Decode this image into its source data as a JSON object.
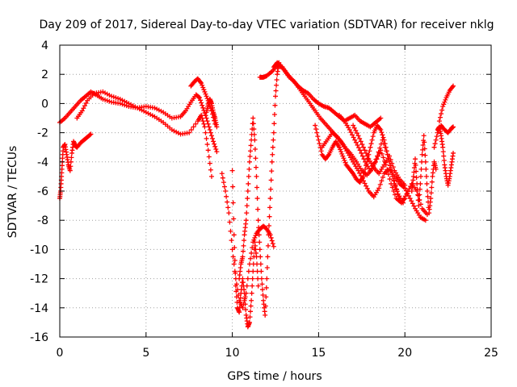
{
  "chart_data": {
    "type": "scatter",
    "title": "Day 209 of 2017, Sidereal Day-to-day VTEC variation (SDTVAR) for receiver nklg",
    "xlabel": "GPS time / hours",
    "ylabel": "SDTVAR / TECUs",
    "xlim": [
      0,
      25
    ],
    "ylim": [
      -16,
      4
    ],
    "xticks": [
      0,
      5,
      10,
      15,
      20,
      25
    ],
    "yticks": [
      -16,
      -14,
      -12,
      -10,
      -8,
      -6,
      -4,
      -2,
      0,
      2,
      4
    ],
    "grid": true,
    "marker": "+",
    "color": "#ff0000",
    "series": [
      {
        "x": [
          0.0,
          0.3,
          0.6,
          0.9,
          1.2,
          1.5,
          1.8,
          2.1,
          2.5,
          3.0,
          3.5,
          4.0,
          4.5,
          5.0,
          5.5,
          6.0,
          6.5,
          7.0,
          7.3,
          7.6,
          7.9,
          8.1,
          8.3,
          8.5,
          8.7,
          8.9,
          9.1
        ],
        "values": [
          -1.3,
          -1.0,
          -0.6,
          -0.2,
          0.2,
          0.5,
          0.8,
          0.6,
          0.3,
          0.1,
          0.0,
          -0.2,
          -0.3,
          -0.2,
          -0.3,
          -0.6,
          -1.0,
          -0.9,
          -0.5,
          0.1,
          0.6,
          0.4,
          -0.3,
          -1.0,
          -1.8,
          -2.6,
          -3.3
        ]
      },
      {
        "x": [
          0.0,
          0.05,
          0.1,
          0.15,
          0.2,
          0.3,
          0.4,
          0.5,
          0.6,
          0.7,
          0.8,
          0.9,
          1.0,
          1.2,
          1.4,
          1.6,
          1.8
        ],
        "values": [
          -6.5,
          -6.0,
          -5.0,
          -4.0,
          -3.0,
          -2.8,
          -3.5,
          -4.2,
          -4.6,
          -3.4,
          -2.6,
          -2.9,
          -3.0,
          -2.7,
          -2.5,
          -2.3,
          -2.1
        ]
      },
      {
        "x": [
          1.0,
          1.3,
          1.6,
          2.0,
          2.5,
          3.0,
          3.5,
          4.0,
          4.5,
          5.0,
          5.5,
          6.0,
          6.5,
          7.0,
          7.5,
          8.0,
          8.2,
          8.4,
          8.6,
          8.8
        ],
        "values": [
          -1.0,
          -0.5,
          0.2,
          0.7,
          0.8,
          0.5,
          0.3,
          0.0,
          -0.3,
          -0.6,
          -0.9,
          -1.3,
          -1.8,
          -2.1,
          -2.0,
          -1.2,
          -0.8,
          -1.6,
          -3.2,
          -5.0
        ]
      },
      {
        "x": [
          7.6,
          7.8,
          8.0,
          8.2,
          8.4,
          8.6,
          8.8,
          9.0
        ],
        "values": [
          1.2,
          1.5,
          1.7,
          1.4,
          0.8,
          0.2,
          -0.5,
          -1.4
        ]
      },
      {
        "x": [
          8.5,
          8.6,
          8.7,
          8.8,
          8.9,
          9.0,
          9.1
        ],
        "values": [
          -0.6,
          -0.1,
          0.3,
          0.0,
          -0.6,
          -1.0,
          -1.6
        ]
      },
      {
        "x": [
          9.4,
          9.6,
          9.8,
          10.0,
          10.2,
          10.4,
          10.6,
          10.8,
          11.0,
          11.2,
          11.4,
          11.6,
          11.8,
          12.0,
          12.2,
          12.4
        ],
        "values": [
          -4.8,
          -6.0,
          -7.5,
          -10.0,
          -12.0,
          -13.5,
          -14.0,
          -13.0,
          -11.0,
          -9.5,
          -8.9,
          -8.6,
          -8.4,
          -8.6,
          -9.0,
          -9.8
        ]
      },
      {
        "x": [
          10.0,
          10.1,
          10.2,
          10.3,
          10.4,
          10.5,
          10.6,
          10.7,
          10.8,
          10.9,
          11.0,
          11.1,
          11.2,
          11.3,
          11.4,
          11.5
        ],
        "values": [
          -4.6,
          -9.0,
          -12.5,
          -14.0,
          -14.3,
          -13.0,
          -12.0,
          -13.0,
          -14.5,
          -15.3,
          -15.0,
          -13.5,
          -11.5,
          -9.5,
          -10.5,
          -12.5
        ]
      },
      {
        "x": [
          10.4,
          10.5,
          10.6,
          10.7,
          10.8,
          10.9,
          11.0,
          11.1,
          11.2,
          11.3,
          11.4,
          11.5,
          11.6,
          11.7,
          11.8,
          11.9,
          12.0,
          12.1,
          12.2,
          12.3,
          12.4,
          12.5,
          12.6,
          12.7
        ],
        "values": [
          -12.0,
          -11.0,
          -10.5,
          -9.0,
          -8.0,
          -6.0,
          -4.0,
          -2.5,
          -1.0,
          -2.5,
          -5.0,
          -8.0,
          -10.0,
          -12.0,
          -13.5,
          -14.5,
          -12.0,
          -9.0,
          -6.5,
          -4.0,
          -2.0,
          0.5,
          2.0,
          2.8
        ]
      },
      {
        "x": [
          11.6,
          11.8,
          12.0,
          12.3,
          12.6,
          12.9,
          13.2,
          13.5,
          13.8,
          14.1,
          14.4,
          14.7,
          15.0,
          15.3,
          15.6,
          15.9,
          16.2,
          16.5,
          16.8,
          17.1,
          17.4,
          17.7,
          18.0,
          18.3,
          18.6
        ],
        "values": [
          1.8,
          1.8,
          1.9,
          2.2,
          2.6,
          2.5,
          2.0,
          1.6,
          1.2,
          0.9,
          0.7,
          0.3,
          0.0,
          -0.2,
          -0.3,
          -0.6,
          -0.9,
          -1.2,
          -1.0,
          -0.8,
          -1.2,
          -1.4,
          -1.6,
          -1.3,
          -1.0
        ]
      },
      {
        "x": [
          12.4,
          12.6,
          12.8,
          13.0,
          13.3,
          13.6,
          13.9,
          14.2,
          14.5,
          14.8,
          15.1,
          15.4,
          15.7,
          16.0,
          16.3,
          16.6,
          16.9,
          17.2,
          17.5,
          17.8,
          18.1,
          18.4,
          18.7,
          19.0,
          19.3,
          19.6,
          19.9
        ],
        "values": [
          2.5,
          2.8,
          2.6,
          2.3,
          1.8,
          1.5,
          1.0,
          0.5,
          0.0,
          -0.5,
          -1.0,
          -1.4,
          -1.8,
          -2.2,
          -2.6,
          -3.1,
          -3.5,
          -4.0,
          -4.6,
          -4.9,
          -4.5,
          -3.6,
          -2.5,
          -3.5,
          -5.0,
          -6.2,
          -6.8
        ]
      },
      {
        "x": [
          14.8,
          15.0,
          15.2,
          15.4,
          15.6,
          15.8,
          16.0,
          16.2,
          16.4,
          16.6,
          16.8,
          17.0,
          17.2,
          17.4,
          17.6,
          17.8,
          18.0,
          18.2,
          18.4,
          18.6,
          18.8,
          19.0,
          19.2,
          19.4,
          19.6,
          19.8,
          20.0
        ],
        "values": [
          -1.5,
          -2.5,
          -3.5,
          -3.8,
          -3.5,
          -3.0,
          -2.6,
          -3.0,
          -3.6,
          -4.2,
          -4.5,
          -4.8,
          -5.2,
          -5.4,
          -5.0,
          -4.0,
          -3.0,
          -2.0,
          -1.5,
          -1.8,
          -2.5,
          -3.5,
          -4.5,
          -5.5,
          -6.2,
          -6.8,
          -6.5
        ]
      },
      {
        "x": [
          15.2,
          15.5,
          15.8,
          16.1,
          16.4,
          16.7,
          17.0,
          17.3,
          17.6,
          17.9,
          18.2,
          18.5,
          18.8,
          19.1,
          19.4,
          19.7,
          20.0,
          20.3,
          20.6,
          20.9,
          21.2
        ],
        "values": [
          -3.0,
          -2.5,
          -2.0,
          -2.3,
          -2.8,
          -3.4,
          -4.0,
          -4.6,
          -5.3,
          -6.0,
          -6.4,
          -5.8,
          -4.8,
          -4.5,
          -5.0,
          -5.5,
          -5.8,
          -6.5,
          -7.2,
          -7.8,
          -8.0
        ]
      },
      {
        "x": [
          16.2,
          16.5,
          16.8,
          17.1,
          17.4,
          17.7,
          18.0,
          18.3,
          18.6,
          18.9,
          19.2,
          19.5,
          19.8,
          20.1,
          20.4,
          20.7,
          21.0,
          21.3
        ],
        "values": [
          -0.8,
          -1.2,
          -1.8,
          -2.5,
          -3.2,
          -4.0,
          -4.6,
          -4.0,
          -3.2,
          -4.2,
          -5.5,
          -6.5,
          -6.8,
          -6.2,
          -5.5,
          -6.0,
          -7.2,
          -7.6
        ]
      },
      {
        "x": [
          17.0,
          17.3,
          17.6,
          17.9,
          18.2,
          18.5,
          18.8,
          19.1,
          19.4,
          19.7,
          20.0
        ],
        "values": [
          -1.5,
          -2.2,
          -3.0,
          -3.8,
          -4.4,
          -4.8,
          -4.2,
          -3.6,
          -4.6,
          -5.2,
          -5.6
        ]
      },
      {
        "x": [
          20.4,
          20.5,
          20.6,
          20.7,
          20.8,
          20.9,
          21.0,
          21.1,
          21.2,
          21.3,
          21.4,
          21.5,
          21.6,
          21.7,
          21.8
        ],
        "values": [
          -6.0,
          -5.0,
          -3.8,
          -5.5,
          -7.0,
          -5.5,
          -3.5,
          -2.2,
          -4.0,
          -6.0,
          -7.5,
          -6.5,
          -5.0,
          -4.0,
          -4.5
        ]
      },
      {
        "x": [
          21.9,
          22.0,
          22.1,
          22.2,
          22.3,
          22.4,
          22.5,
          22.6,
          22.7,
          22.8
        ],
        "values": [
          -1.8,
          -1.6,
          -2.2,
          -3.0,
          -4.2,
          -5.0,
          -5.6,
          -5.0,
          -4.2,
          -3.4
        ]
      },
      {
        "x": [
          21.7,
          21.9,
          22.1,
          22.3,
          22.5,
          22.7,
          22.8
        ],
        "values": [
          -3.0,
          -2.0,
          -1.5,
          -1.8,
          -2.0,
          -1.7,
          -1.6
        ]
      },
      {
        "x": [
          22.0,
          22.2,
          22.4,
          22.6,
          22.8
        ],
        "values": [
          -1.2,
          -0.2,
          0.4,
          0.9,
          1.2
        ]
      }
    ]
  }
}
